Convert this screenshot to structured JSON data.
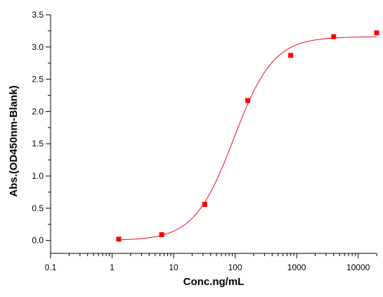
{
  "chart_data": {
    "type": "scatter",
    "title": "",
    "xlabel": "Conc.ng/mL",
    "ylabel": "Abs.(OD450nm-Blank)",
    "x_scale": "log",
    "xlim": [
      0.1,
      20000
    ],
    "ylim": [
      -0.2,
      3.5
    ],
    "x_ticks": [
      0.1,
      1,
      10,
      100,
      1000,
      10000
    ],
    "x_tick_labels": [
      "0.1",
      "1",
      "10",
      "100",
      "1000",
      "10000"
    ],
    "y_ticks": [
      0.0,
      0.5,
      1.0,
      1.5,
      2.0,
      2.5,
      3.0,
      3.5
    ],
    "y_tick_labels": [
      "0.0",
      "0.5",
      "1.0",
      "1.5",
      "2.0",
      "2.5",
      "3.0",
      "3.5"
    ],
    "grid": false,
    "legend": "none",
    "series": [
      {
        "x": [
          1.28,
          6.4,
          32,
          160,
          800,
          4000,
          20000
        ],
        "y": [
          0.02,
          0.09,
          0.56,
          2.17,
          2.87,
          3.16,
          3.22
        ],
        "marker": "square",
        "color": "#ff0000"
      }
    ],
    "fit_curve": {
      "model": "4PL",
      "bottom": 0.0,
      "top": 3.16,
      "ec50": 95,
      "hill": 1.35,
      "color": "#e8101e"
    }
  }
}
